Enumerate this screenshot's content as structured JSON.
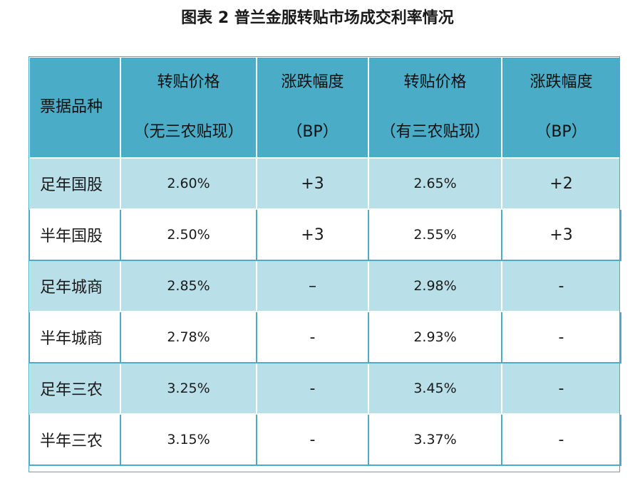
{
  "title": "图表 2  普兰金服转贴市场成交利率情况",
  "colors": {
    "header_bg": "#4aacc6",
    "band_bg": "#b9dfe8",
    "plain_bg": "#ffffff"
  },
  "table": {
    "columns": [
      {
        "line1": "票据品种",
        "line2": ""
      },
      {
        "line1": "转贴价格",
        "line2": "（无三农贴现）"
      },
      {
        "line1": "涨跌幅度",
        "line2": "（BP）"
      },
      {
        "line1": "转贴价格",
        "line2": "（有三农贴现）"
      },
      {
        "line1": "涨跌幅度",
        "line2": "（BP）"
      }
    ],
    "rows": [
      {
        "variety": "足年国股",
        "price_no": "2.60%",
        "chg_no": "+3",
        "price_yes": "2.65%",
        "chg_yes": "+2"
      },
      {
        "variety": "半年国股",
        "price_no": "2.50%",
        "chg_no": "+3",
        "price_yes": "2.55%",
        "chg_yes": "+3"
      },
      {
        "variety": "足年城商",
        "price_no": "2.85%",
        "chg_no": "–",
        "price_yes": "2.98%",
        "chg_yes": "-"
      },
      {
        "variety": "半年城商",
        "price_no": "2.78%",
        "chg_no": "-",
        "price_yes": "2.93%",
        "chg_yes": "-"
      },
      {
        "variety": "足年三农",
        "price_no": "3.25%",
        "chg_no": "-",
        "price_yes": "3.45%",
        "chg_yes": "-"
      },
      {
        "variety": "半年三农",
        "price_no": "3.15%",
        "chg_no": "-",
        "price_yes": "3.37%",
        "chg_yes": "-"
      }
    ]
  }
}
